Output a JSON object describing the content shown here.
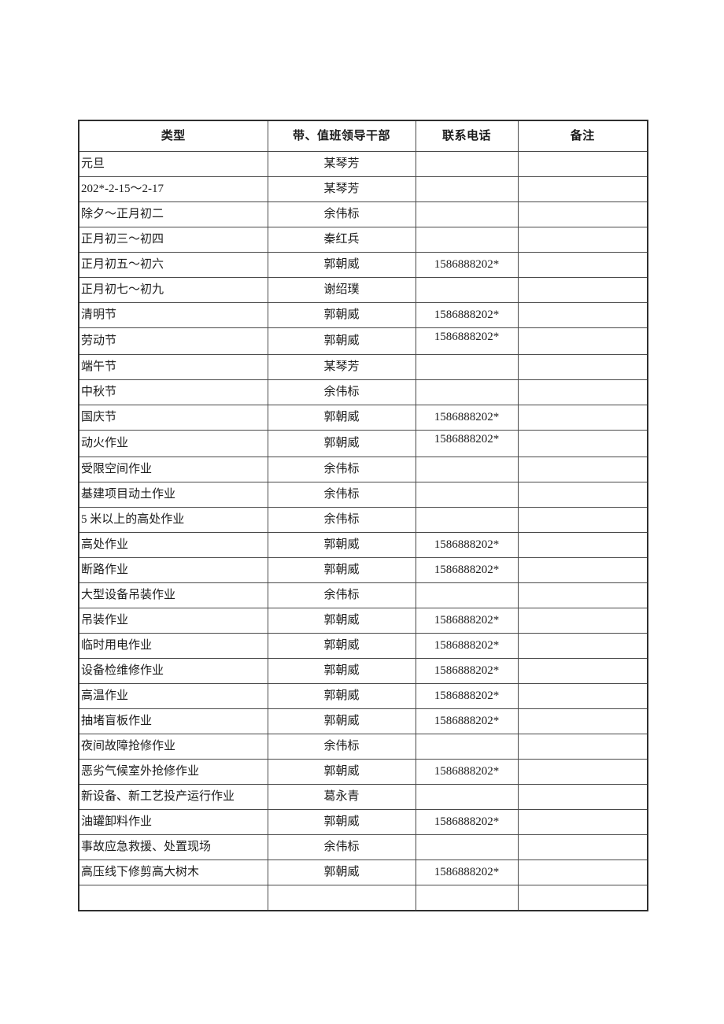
{
  "page": {
    "background": "#ffffff",
    "text_color": "#1c1c1c",
    "border_color": "#4a4a4a"
  },
  "table": {
    "headers": [
      "类型",
      "带、值班领导干部",
      "联系电话",
      "备注"
    ],
    "rows": [
      {
        "type": "元旦",
        "leader": "某琴芳",
        "phone": "",
        "remark": ""
      },
      {
        "type": "202*-2-15～2-17",
        "leader": "某琴芳",
        "phone": "",
        "remark": ""
      },
      {
        "type": "除夕～正月初二",
        "leader": "余伟标",
        "phone": "",
        "remark": ""
      },
      {
        "type": "正月初三～初四",
        "leader": "秦红兵",
        "phone": "",
        "remark": ""
      },
      {
        "type": "正月初五～初六",
        "leader": "郭朝威",
        "phone": "1586888202*",
        "remark": ""
      },
      {
        "type": "正月初七～初九",
        "leader": "谢绍璞",
        "phone": "",
        "remark": ""
      },
      {
        "type": "清明节",
        "leader": "郭朝威",
        "phone": "1586888202*",
        "remark": ""
      },
      {
        "type": "劳动节",
        "leader": "郭朝威",
        "phone": "1586888202*",
        "remark": "",
        "phone_top": true
      },
      {
        "type": "端午节",
        "leader": "某琴芳",
        "phone": "",
        "remark": ""
      },
      {
        "type": "中秋节",
        "leader": "余伟标",
        "phone": "",
        "remark": ""
      },
      {
        "type": "国庆节",
        "leader": "郭朝威",
        "phone": "1586888202*",
        "remark": ""
      },
      {
        "type": "动火作业",
        "leader": "郭朝威",
        "phone": "1586888202*",
        "remark": "",
        "phone_top": true
      },
      {
        "type": "受限空间作业",
        "leader": "余伟标",
        "phone": "",
        "remark": ""
      },
      {
        "type": "基建项目动土作业",
        "leader": "余伟标",
        "phone": "",
        "remark": ""
      },
      {
        "type": "5 米以上的高处作业",
        "leader": "余伟标",
        "phone": "",
        "remark": ""
      },
      {
        "type": "高处作业",
        "leader": "郭朝威",
        "phone": "1586888202*",
        "remark": ""
      },
      {
        "type": "断路作业",
        "leader": "郭朝威",
        "phone": "1586888202*",
        "remark": ""
      },
      {
        "type": "大型设备吊装作业",
        "leader": "余伟标",
        "phone": "",
        "remark": ""
      },
      {
        "type": "吊装作业",
        "leader": "郭朝威",
        "phone": "1586888202*",
        "remark": ""
      },
      {
        "type": "临时用电作业",
        "leader": "郭朝威",
        "phone": "1586888202*",
        "remark": ""
      },
      {
        "type": "设备检维修作业",
        "leader": "郭朝威",
        "phone": "1586888202*",
        "remark": ""
      },
      {
        "type": "高温作业",
        "leader": "郭朝威",
        "phone": "1586888202*",
        "remark": ""
      },
      {
        "type": "抽堵盲板作业",
        "leader": "郭朝威",
        "phone": "1586888202*",
        "remark": ""
      },
      {
        "type": "夜间故障抢修作业",
        "leader": "余伟标",
        "phone": "",
        "remark": ""
      },
      {
        "type": "恶劣气候室外抢修作业",
        "leader": "郭朝威",
        "phone": "1586888202*",
        "remark": ""
      },
      {
        "type": "新设备、新工艺投产运行作业",
        "leader": "葛永青",
        "phone": "",
        "remark": ""
      },
      {
        "type": "油罐卸料作业",
        "leader": "郭朝威",
        "phone": "1586888202*",
        "remark": ""
      },
      {
        "type": "事故应急救援、处置现场",
        "leader": "余伟标",
        "phone": "",
        "remark": ""
      },
      {
        "type": "高压线下修剪高大树木",
        "leader": "郭朝威",
        "phone": "1586888202*",
        "remark": ""
      },
      {
        "type": "",
        "leader": "",
        "phone": "",
        "remark": ""
      }
    ]
  }
}
